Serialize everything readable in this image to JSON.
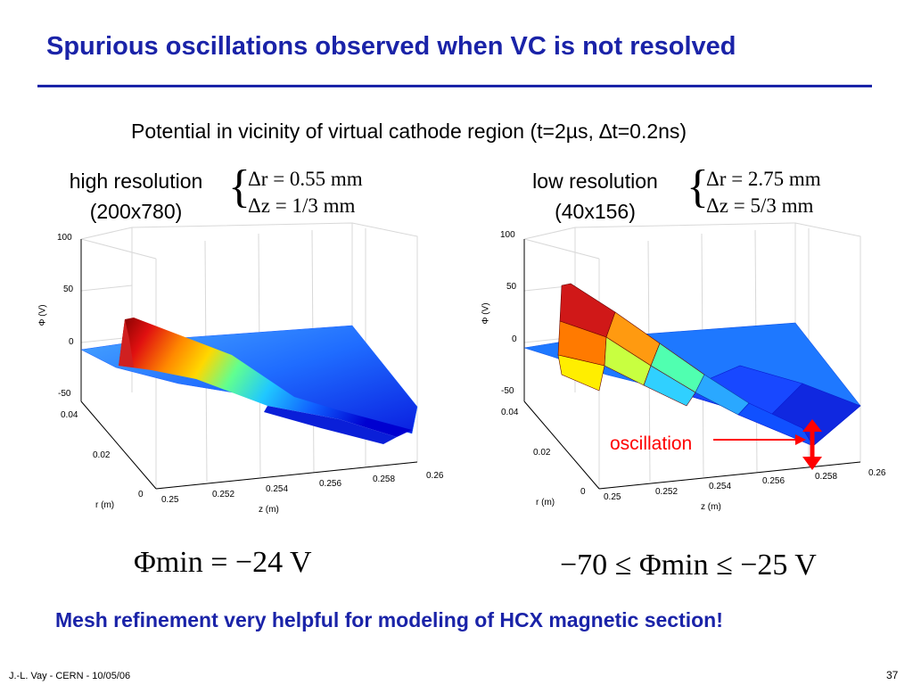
{
  "title": "Spurious oscillations observed when VC is not resolved",
  "subtitle": "Potential in vicinity of virtual cathode region (t=2µs, ∆t=0.2ns)",
  "left": {
    "label": "high resolution",
    "grid": "(200x780)",
    "dr": "Δr = 0.55 mm",
    "dz": "Δz = 1/3 mm",
    "phi_min": "Φmin = −24 V"
  },
  "right": {
    "label": "low resolution",
    "grid": "(40x156)",
    "dr": "Δr = 2.75 mm",
    "dz": "Δz = 5/3 mm",
    "phi_min": "−70 ≤ Φmin ≤ −25 V",
    "annotation": "oscillation"
  },
  "plot": {
    "zlabel": "Φ (V)",
    "xlabel": "r (m)",
    "ylabel": "z (m)",
    "zticks": [
      "100",
      "50",
      "0",
      "-50"
    ],
    "rticks": [
      "0.04",
      "0.02",
      "0"
    ],
    "zaxis_ticks": [
      "0.25",
      "0.252",
      "0.254",
      "0.256",
      "0.258",
      "0.26"
    ]
  },
  "bottom_note": "Mesh refinement very helpful for modeling of HCX magnetic section!",
  "footer_left": "J.-L. Vay - CERN - 10/05/06",
  "page_number": "37"
}
